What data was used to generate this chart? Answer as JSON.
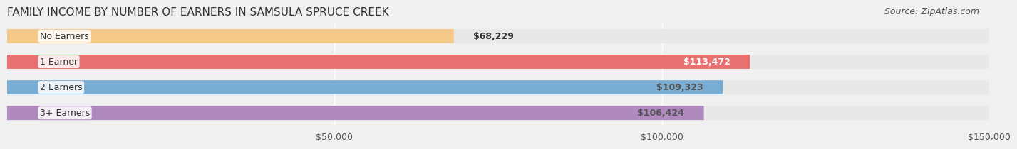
{
  "title": "FAMILY INCOME BY NUMBER OF EARNERS IN SAMSULA SPRUCE CREEK",
  "source": "Source: ZipAtlas.com",
  "categories": [
    "No Earners",
    "1 Earner",
    "2 Earners",
    "3+ Earners"
  ],
  "values": [
    68229,
    113472,
    109323,
    106424
  ],
  "bar_colors": [
    "#f5c98a",
    "#e87070",
    "#7aadd4",
    "#b08abf"
  ],
  "label_colors": [
    "#555555",
    "#ffffff",
    "#555555",
    "#555555"
  ],
  "bg_color": "#f0f0f0",
  "bar_bg_color": "#e8e8e8",
  "title_fontsize": 11,
  "source_fontsize": 9,
  "label_fontsize": 9,
  "tick_fontsize": 9,
  "xlim": [
    0,
    150000
  ],
  "xticks": [
    50000,
    100000,
    150000
  ],
  "xtick_labels": [
    "$50,000",
    "$100,000",
    "$150,000"
  ]
}
